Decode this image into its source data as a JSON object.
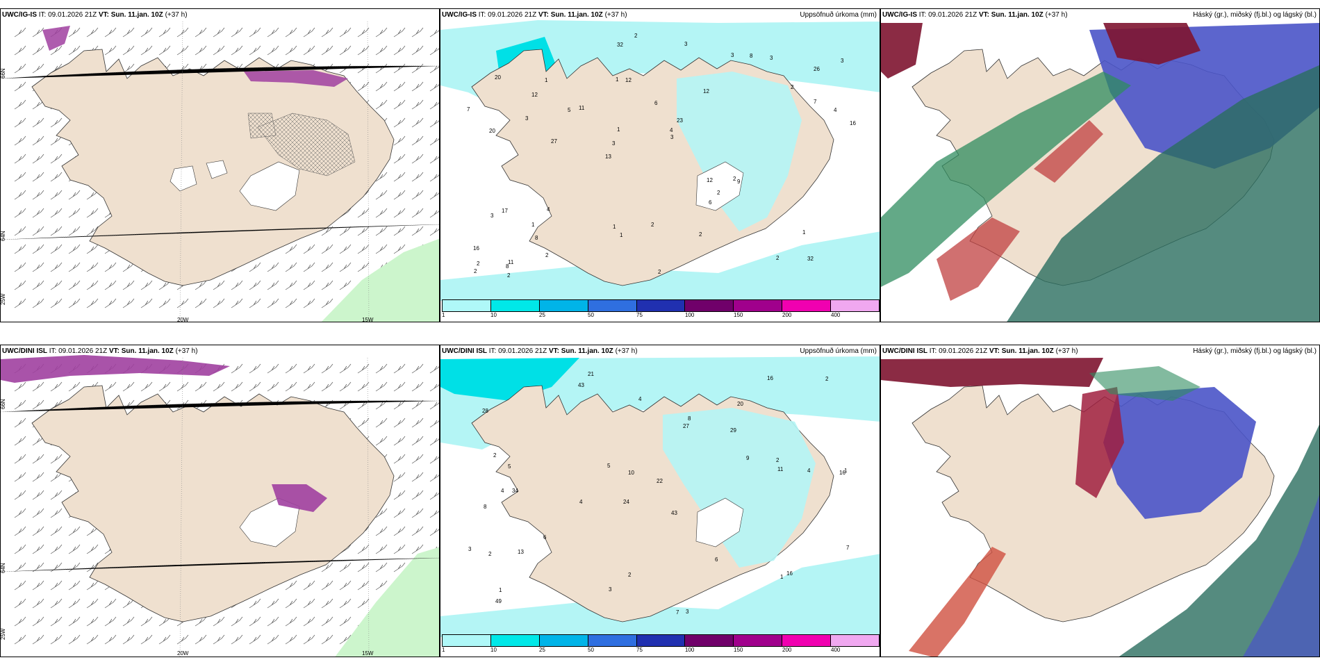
{
  "panels": {
    "p1": {
      "model": "UWC/IG-IS",
      "it": "IT: 09.01.2026 21Z",
      "vt": "VT: Sun. 11.jan. 10Z",
      "lead": "(+37 h)",
      "right": "",
      "lat_labels": [
        "66N",
        "64N",
        "25W"
      ],
      "lon_labels": [
        "20W",
        "15W"
      ]
    },
    "p2": {
      "model": "UWC/IG-IS",
      "it": "IT: 09.01.2026 21Z",
      "vt": "VT: Sun. 11.jan. 10Z",
      "lead": "(+37 h)",
      "right": "Uppsöfnuð úrkoma (mm)",
      "values": [
        "32",
        "20",
        "26",
        "13",
        "12",
        "11",
        "1",
        "6",
        "17",
        "11",
        "16",
        "8",
        "12",
        "23",
        "9",
        "20",
        "32",
        "16",
        "12",
        "7",
        "3",
        "1",
        "1",
        "1",
        "3",
        "4",
        "2",
        "1",
        "2",
        "2",
        "5",
        "3",
        "6",
        "2",
        "4",
        "4",
        "2",
        "1",
        "3",
        "3",
        "2",
        "3",
        "2",
        "2",
        "1",
        "2",
        "2",
        "2",
        "3",
        "2",
        "27",
        "7",
        "12",
        "8",
        "8",
        "3"
      ]
    },
    "p3": {
      "model": "UWC/IG-IS",
      "it": "IT: 09.01.2026 21Z",
      "vt": "VT: Sun. 11.jan. 10Z",
      "lead": "(+37 h)",
      "right": "Háský (gr.), miðský (fj.bl.) og lágský (bl.)"
    },
    "p4": {
      "model": "UWC/DINI ISL",
      "it": "IT: 09.01.2026 21Z",
      "vt": "VT: Sun. 11.jan. 10Z",
      "lead": "(+37 h)",
      "right": "",
      "lat_labels": [
        "66N",
        "64N",
        "25W"
      ],
      "lon_labels": [
        "20W",
        "15W"
      ]
    },
    "p5": {
      "model": "UWC/DINI ISL",
      "it": "IT: 09.01.2026 21Z",
      "vt": "VT: Sun. 11.jan. 10Z",
      "lead": "(+37 h)",
      "right": "Uppsöfnuð úrkoma (mm)",
      "values": [
        "21",
        "20",
        "16",
        "24",
        "43",
        "34",
        "28",
        "29",
        "8",
        "27",
        "22",
        "49",
        "43",
        "4",
        "7",
        "3",
        "2",
        "16",
        "9",
        "6",
        "5",
        "4",
        "1",
        "4",
        "3",
        "2",
        "10",
        "11",
        "16",
        "2",
        "1",
        "8",
        "13",
        "5",
        "6",
        "7",
        "2",
        "3",
        "2",
        "4",
        "1"
      ]
    },
    "p6": {
      "model": "UWC/DINI ISL",
      "it": "IT: 09.01.2026 21Z",
      "vt": "VT: Sun. 11.jan. 10Z",
      "lead": "(+37 h)",
      "right": "Háský (gr.), miðský (fj.bl.) og lágský (bl.)"
    }
  },
  "colorbar": {
    "ticks": [
      "1",
      "10",
      "25",
      "50",
      "75",
      "100",
      "150",
      "200",
      "400"
    ],
    "colors": [
      "#aff8f8",
      "#00e8e8",
      "#00b4e8",
      "#2f6fe0",
      "#2030b0",
      "#70006a",
      "#a0008c",
      "#f000b0",
      "#f0a8f0"
    ]
  },
  "colors": {
    "land": "#efe0cf",
    "ocean": "#ffffff",
    "precip_light": "#b4f5f5",
    "precip_med": "#00e0e6",
    "high_cloud": "#2a6e5f",
    "mid_cloud": "#7e1430",
    "low_cloud": "#4a54c8"
  }
}
